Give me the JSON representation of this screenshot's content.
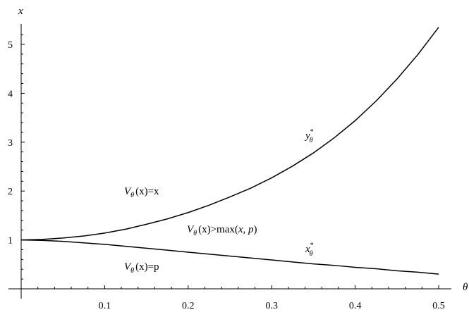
{
  "chart_data": {
    "type": "line",
    "xlabel": "θ",
    "ylabel": "x",
    "xlim": [
      0,
      0.5
    ],
    "ylim": [
      0,
      5.5
    ],
    "x_ticks": [
      0.1,
      0.2,
      0.3,
      0.4,
      0.5
    ],
    "x_tick_labels": [
      "0.1",
      "0.2",
      "0.3",
      "0.4",
      "0.5"
    ],
    "y_ticks": [
      1,
      2,
      3,
      4,
      5
    ],
    "y_tick_labels": [
      "1",
      "2",
      "3",
      "4",
      "5"
    ],
    "grid": false,
    "series": [
      {
        "name": "y*θ",
        "x": [
          0,
          0.025,
          0.05,
          0.075,
          0.1,
          0.125,
          0.15,
          0.175,
          0.2,
          0.225,
          0.25,
          0.275,
          0.3,
          0.325,
          0.35,
          0.375,
          0.4,
          0.425,
          0.45,
          0.475,
          0.5
        ],
        "y": [
          1.0,
          1.01,
          1.04,
          1.08,
          1.14,
          1.22,
          1.32,
          1.43,
          1.56,
          1.71,
          1.88,
          2.06,
          2.27,
          2.51,
          2.78,
          3.09,
          3.44,
          3.84,
          4.29,
          4.79,
          5.35
        ]
      },
      {
        "name": "x*θ",
        "x": [
          0,
          0.025,
          0.05,
          0.075,
          0.1,
          0.125,
          0.15,
          0.175,
          0.2,
          0.225,
          0.25,
          0.275,
          0.3,
          0.325,
          0.35,
          0.375,
          0.4,
          0.425,
          0.45,
          0.475,
          0.5
        ],
        "y": [
          1.0,
          0.99,
          0.97,
          0.94,
          0.91,
          0.87,
          0.83,
          0.79,
          0.75,
          0.71,
          0.67,
          0.63,
          0.59,
          0.55,
          0.51,
          0.48,
          0.44,
          0.41,
          0.37,
          0.34,
          0.3
        ]
      }
    ],
    "annotations": {
      "curve_y": {
        "base": "y",
        "sup": "*",
        "sub": "θ",
        "at": [
          0.37,
          3.4
        ]
      },
      "curve_x": {
        "base": "x",
        "sup": "*",
        "sub": "θ",
        "at": [
          0.37,
          0.68
        ]
      },
      "region_top": {
        "V": "V",
        "sub": "θ",
        "arg": "(x)",
        "rest": "=x",
        "at": [
          0.13,
          2.0
        ]
      },
      "region_mid": {
        "V": "V",
        "sub": "θ",
        "arg": "(x)",
        "rest": ">max(",
        "x": "x",
        "comma": ", ",
        "p": "p",
        "close": ")",
        "at": [
          0.21,
          1.18
        ]
      },
      "region_bottom": {
        "V": "V",
        "sub": "θ",
        "arg": "(x)",
        "rest": "=p",
        "at": [
          0.13,
          0.45
        ]
      }
    }
  }
}
